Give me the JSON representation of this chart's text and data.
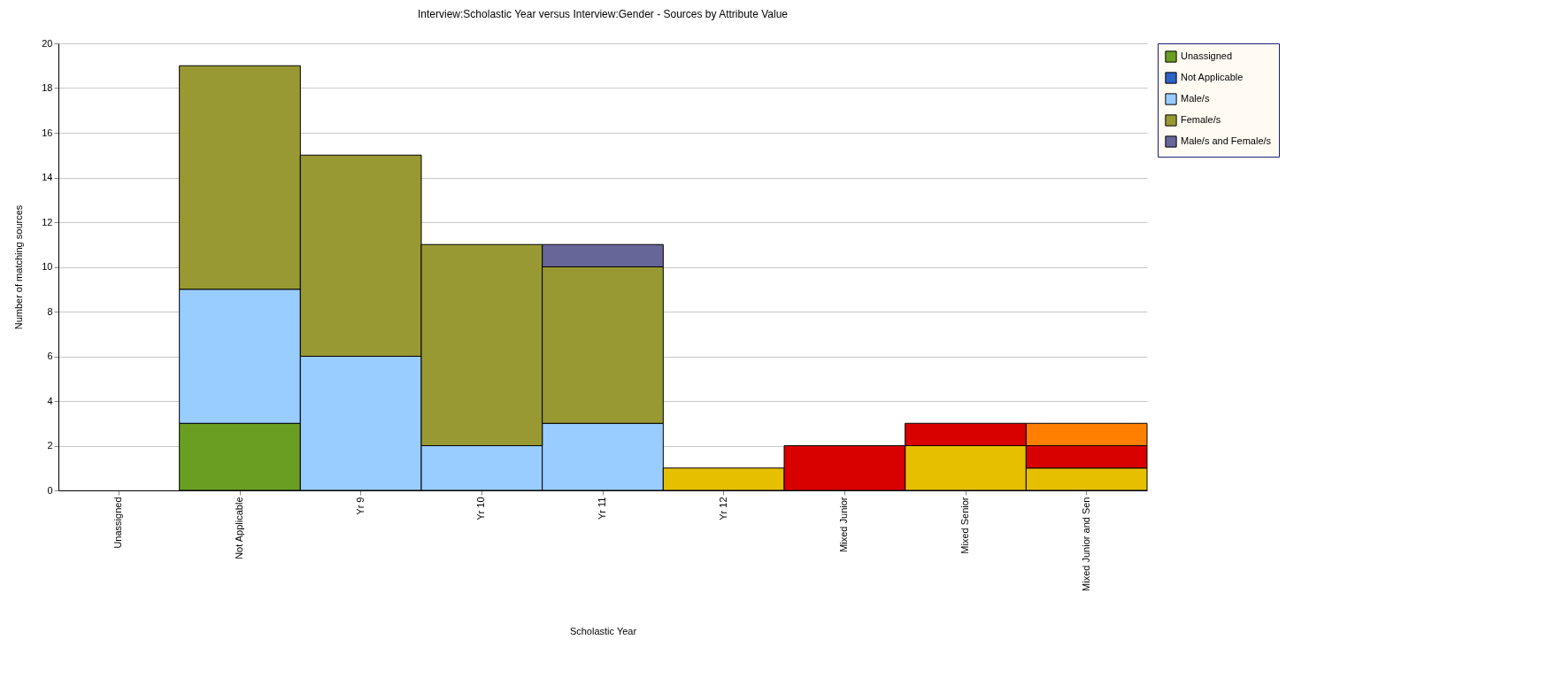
{
  "chart_data": {
    "type": "bar",
    "stacked": true,
    "title": "Interview:Scholastic Year versus Interview:Gender - Sources by Attribute Value",
    "xlabel": "Scholastic Year",
    "ylabel": "Number of matching sources",
    "categories": [
      "Unassigned",
      "Not Applicable",
      "Yr 9",
      "Yr 10",
      "Yr 11",
      "Yr 12",
      "Mixed Junior",
      "Mixed Senior",
      "Mixed Junior and Sen"
    ],
    "series": [
      {
        "name": "Unassigned",
        "color": "#6a9e23",
        "values": [
          null,
          3,
          null,
          null,
          null,
          null,
          null,
          null,
          null
        ]
      },
      {
        "name": "Not Applicable",
        "color": "#2b63c6",
        "values": [
          null,
          null,
          null,
          null,
          null,
          null,
          null,
          null,
          null
        ]
      },
      {
        "name": "Male/s",
        "color": "#99ccff",
        "values": [
          null,
          6,
          6,
          2,
          3,
          null,
          null,
          null,
          null
        ]
      },
      {
        "name": "Female/s",
        "color": "#999933",
        "values": [
          null,
          10,
          9,
          9,
          7,
          null,
          null,
          null,
          null
        ]
      },
      {
        "name": "Male/s and Female/s",
        "color": "#666699",
        "values": [
          null,
          null,
          null,
          null,
          1,
          null,
          null,
          null,
          null
        ]
      },
      {
        "color": "#e6c000",
        "values": [
          null,
          null,
          null,
          null,
          null,
          1,
          null,
          2,
          1
        ]
      },
      {
        "color": "#d90000",
        "values": [
          null,
          null,
          null,
          null,
          null,
          null,
          2,
          1,
          1
        ]
      },
      {
        "color": "#ff8000",
        "values": [
          null,
          null,
          null,
          null,
          null,
          null,
          null,
          null,
          1
        ]
      }
    ],
    "ylim": [
      0,
      20
    ],
    "yticks": [
      0,
      2,
      4,
      6,
      8,
      10,
      12,
      14,
      16,
      18,
      20
    ],
    "grid": "y",
    "legend": "top right"
  }
}
